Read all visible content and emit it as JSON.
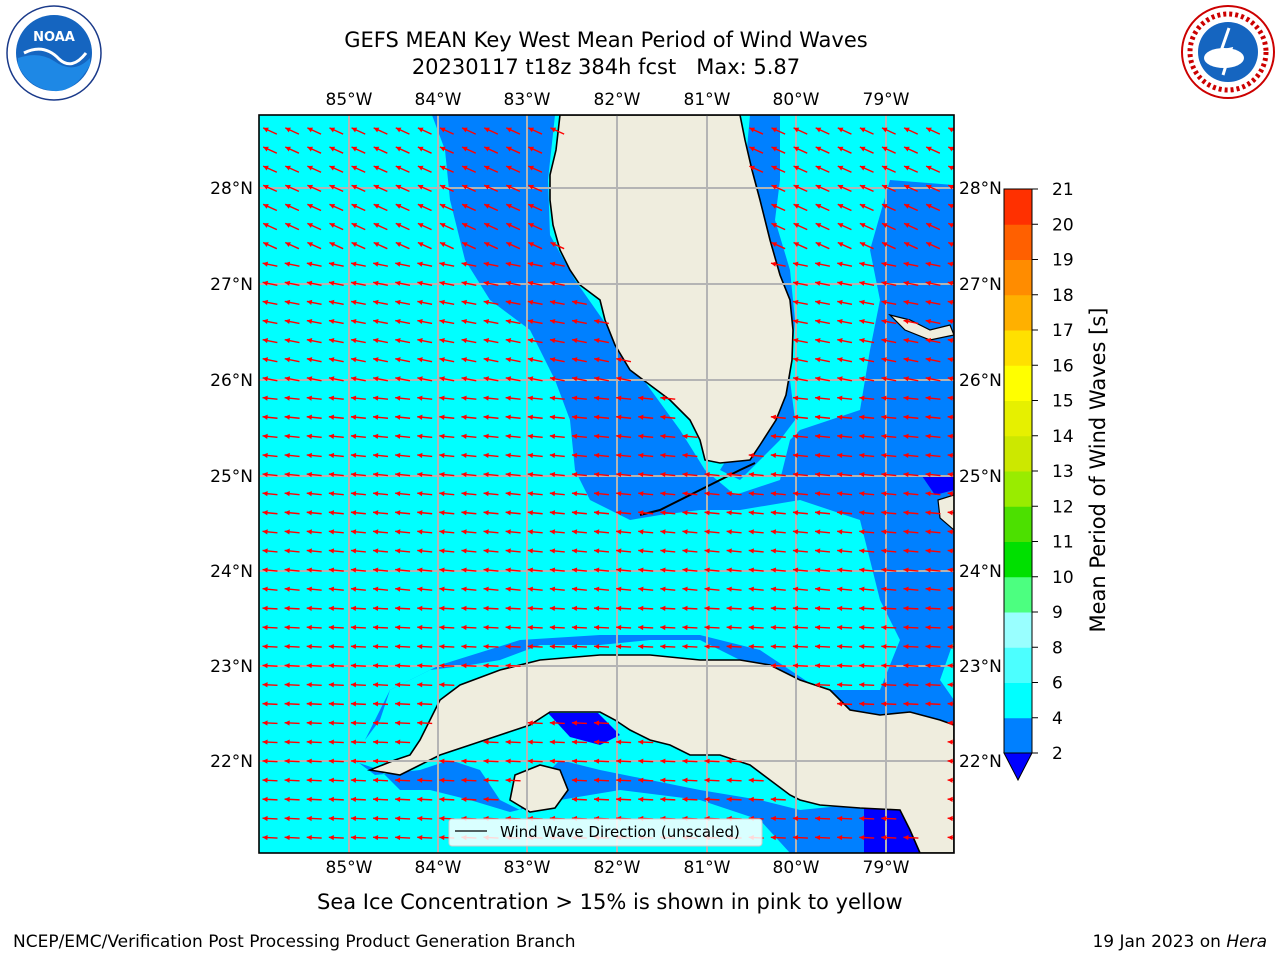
{
  "title": {
    "line1": "GEFS MEAN Key West Mean Period of Wind Waves",
    "line2": "20230117 t18z 384h fcst   Max: 5.87"
  },
  "map": {
    "lon_labels": [
      "85°W",
      "84°W",
      "83°W",
      "82°W",
      "81°W",
      "80°W",
      "79°W"
    ],
    "lat_labels": [
      "28°N",
      "27°N",
      "26°N",
      "25°N",
      "24°N",
      "23°N",
      "22°N"
    ],
    "legend": "Wind Wave Direction (unscaled)",
    "colors": {
      "water_low": "#0080ff",
      "water_mid": "#00ffff",
      "water_deep": "#0000ff",
      "land": "#efedde",
      "arrow": "#ff0000",
      "grid": "#b4b4b4"
    }
  },
  "colorbar": {
    "label": "Mean Period of Wind Waves [s]",
    "ticks": [
      "2",
      "4",
      "6",
      "8",
      "9",
      "10",
      "11",
      "12",
      "13",
      "14",
      "15",
      "16",
      "17",
      "18",
      "19",
      "20",
      "21"
    ],
    "colors": [
      "#0080ff",
      "#00ffff",
      "#4cffff",
      "#99ffff",
      "#4cff80",
      "#00e000",
      "#4ce000",
      "#99ec00",
      "#cce800",
      "#e6f000",
      "#ffff00",
      "#ffe000",
      "#ffb000",
      "#ff8c00",
      "#ff6000",
      "#ff3000",
      "#ff0000"
    ]
  },
  "ice_note": "Sea Ice Concentration > 15% is shown in pink to yellow",
  "footer": {
    "left": "NCEP/EMC/Verification Post Processing Product Generation Branch",
    "right_date": "19 Jan 2023 on",
    "right_host": "Hera"
  },
  "logos": {
    "noaa_text": "NOAA",
    "nws_text": "NATIONAL WEATHER SERVICE"
  }
}
